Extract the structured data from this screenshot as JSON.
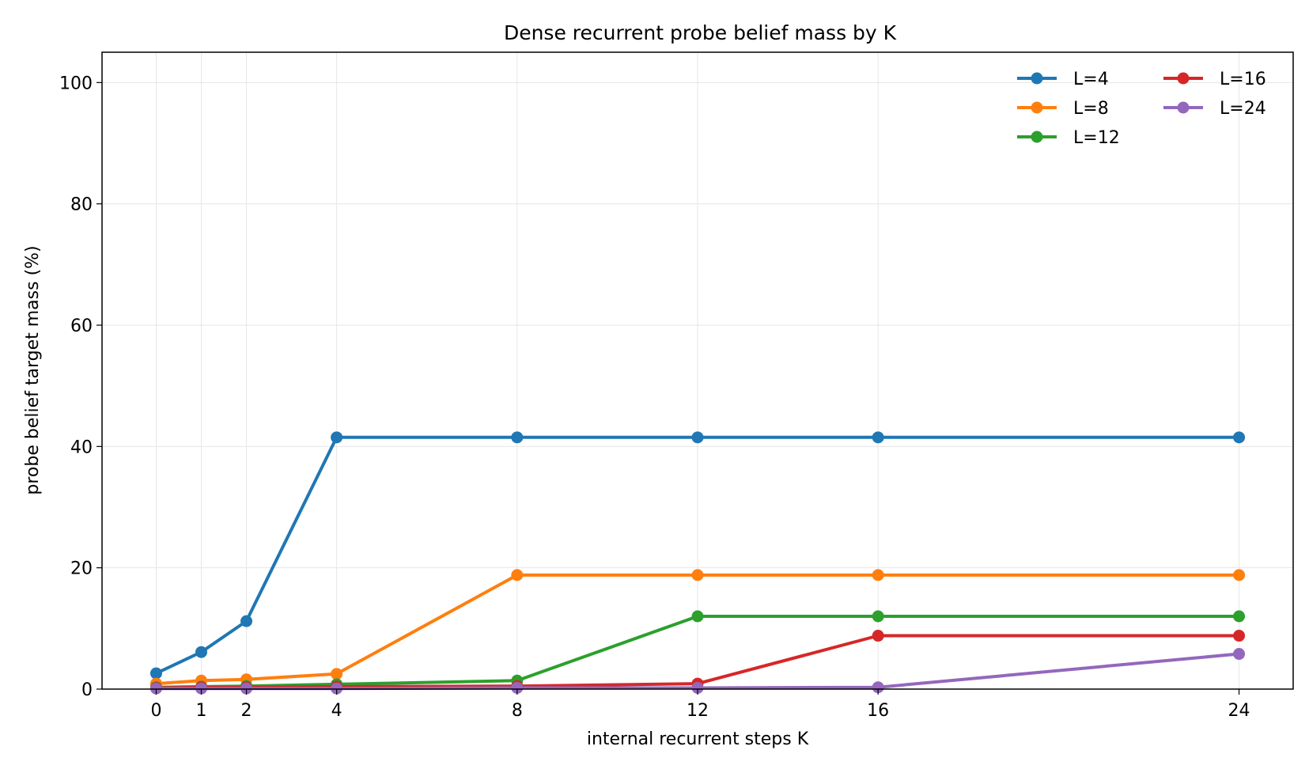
{
  "chart_data": {
    "type": "line",
    "title": "Dense recurrent probe belief mass by K",
    "xlabel": "internal recurrent steps K",
    "ylabel": "probe belief target mass (%)",
    "x": [
      0,
      1,
      2,
      4,
      8,
      12,
      16,
      24
    ],
    "xlim": [
      -1.2,
      25.2
    ],
    "ylim": [
      0,
      105
    ],
    "yticks": [
      0,
      20,
      40,
      60,
      80,
      100
    ],
    "grid": true,
    "legend_position": "top-right",
    "series": [
      {
        "name": "L=4",
        "color": "#1f77b4",
        "values": [
          2.6,
          6.1,
          11.2,
          41.5,
          41.5,
          41.5,
          41.5,
          41.5
        ]
      },
      {
        "name": "L=8",
        "color": "#ff7f0e",
        "values": [
          0.9,
          1.4,
          1.6,
          2.5,
          18.8,
          18.8,
          18.8,
          18.8
        ]
      },
      {
        "name": "L=12",
        "color": "#2ca02c",
        "values": [
          0.3,
          0.4,
          0.5,
          0.8,
          1.4,
          12.0,
          12.0,
          12.0
        ]
      },
      {
        "name": "L=16",
        "color": "#d62728",
        "values": [
          0.2,
          0.3,
          0.3,
          0.4,
          0.5,
          0.9,
          8.8,
          8.8
        ]
      },
      {
        "name": "L=24",
        "color": "#9467bd",
        "values": [
          0.1,
          0.1,
          0.1,
          0.1,
          0.2,
          0.2,
          0.3,
          5.8
        ]
      }
    ]
  }
}
